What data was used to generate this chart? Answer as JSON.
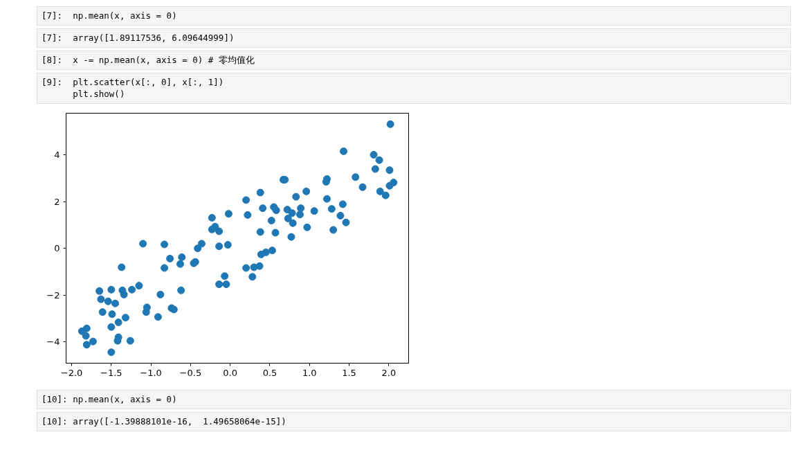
{
  "chart_data": {
    "type": "scatter",
    "marker": "circle",
    "grid": false,
    "annotations": [
      "[7]:  np.mean(x, axis = 0)",
      "[7]:  array([1.89117536, 6.09644999])",
      "[8]:  x -= np.mean(x, axis = 0) # 零均值化",
      "[9]:  plt.scatter(x[:, 0], x[:, 1])\n      plt.show()",
      "[10]: np.mean(x, axis = 0)",
      "[10]: array([-1.39888101e-16,  1.49658064e-15])"
    ],
    "xlim": [
      -2.07,
      2.25
    ],
    "ylim": [
      -4.92,
      5.79
    ],
    "xticks": [
      {
        "value": -2.0,
        "label": "−2.0"
      },
      {
        "value": -1.5,
        "label": "−1.5"
      },
      {
        "value": -1.0,
        "label": "−1.0"
      },
      {
        "value": -0.5,
        "label": "−0.5"
      },
      {
        "value": 0,
        "label": "0.0"
      },
      {
        "value": 0.5,
        "label": "0.5"
      },
      {
        "value": 1.0,
        "label": "1.0"
      },
      {
        "value": 1.5,
        "label": "1.5"
      },
      {
        "value": 2.0,
        "label": "2.0"
      }
    ],
    "yticks": [
      {
        "value": -4,
        "label": "−4"
      },
      {
        "value": -2,
        "label": "−2"
      },
      0,
      2,
      4
    ],
    "series": [
      {
        "color": "#1f77b4",
        "x": [
          2.02,
          1.43,
          1.81,
          1.88,
          1.83,
          2.01,
          1.58,
          0.67,
          0.69,
          1.22,
          1.21,
          2.06,
          2.01,
          1.67,
          0.38,
          0.96,
          1.89,
          1.96,
          0.2,
          0.83,
          1.22,
          0.41,
          0.55,
          0.58,
          0.72,
          0.78,
          0.89,
          0.88,
          1.06,
          1.28,
          1.42,
          0.22,
          0.52,
          0.73,
          0.79,
          1.39,
          1.46,
          0.97,
          0.38,
          0.57,
          0.77,
          1.3,
          -0.02,
          -0.23,
          -0.19,
          -0.23,
          -0.14,
          -1.1,
          -0.83,
          -0.36,
          -0.41,
          -0.14,
          -0.03,
          -0.76,
          -0.61,
          -0.63,
          -0.44,
          -0.46,
          -1.37,
          -0.83,
          -0.07,
          -0.14,
          -0.05,
          -1.15,
          -1.65,
          -1.5,
          -1.36,
          -1.34,
          -1.24,
          -0.88,
          -0.62,
          -1.63,
          -1.54,
          -1.45,
          -1.05,
          -1.06,
          -0.74,
          -0.71,
          -1.61,
          -1.49,
          -0.91,
          -1.32,
          -1.41,
          -1.5,
          -1.81,
          -1.87,
          -1.82,
          -1.41,
          -1.42,
          -1.73,
          -1.26,
          -1.81,
          -1.5,
          0.53,
          0.45,
          0.39,
          0.37,
          0.3,
          0.2,
          0.28
        ],
        "values": [
          5.32,
          4.16,
          4.01,
          3.78,
          3.4,
          3.35,
          3.05,
          2.94,
          2.94,
          2.97,
          2.85,
          2.82,
          2.68,
          2.62,
          2.39,
          2.44,
          2.44,
          2.27,
          2.07,
          2.21,
          2.12,
          1.72,
          1.77,
          1.63,
          1.66,
          1.51,
          1.72,
          1.45,
          1.6,
          1.69,
          1.89,
          1.43,
          1.19,
          1.28,
          1.08,
          1.4,
          1.11,
          0.9,
          0.7,
          0.67,
          0.49,
          0.79,
          1.48,
          1.31,
          0.93,
          0.81,
          0.73,
          0.2,
          0.17,
          0.2,
          0.0,
          0.09,
          0.15,
          -0.44,
          -0.38,
          -0.67,
          -0.58,
          -0.64,
          -0.81,
          -0.84,
          -1.19,
          -1.54,
          -1.54,
          -1.6,
          -1.83,
          -1.77,
          -1.8,
          -1.98,
          -1.77,
          -1.98,
          -1.8,
          -2.18,
          -2.27,
          -2.36,
          -2.53,
          -2.73,
          -2.56,
          -2.62,
          -2.73,
          -2.82,
          -2.94,
          -2.97,
          -3.17,
          -3.37,
          -3.43,
          -3.55,
          -3.75,
          -3.81,
          -3.96,
          -3.99,
          -3.96,
          -4.13,
          -4.45,
          -0.09,
          -0.17,
          -0.26,
          -0.76,
          -0.81,
          -0.84,
          -1.22
        ]
      }
    ]
  }
}
